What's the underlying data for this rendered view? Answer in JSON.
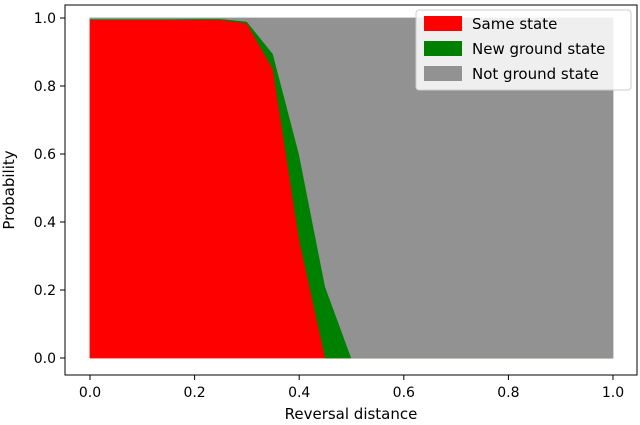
{
  "chart_data": {
    "type": "area",
    "stacked": true,
    "xlabel": "Reversal distance",
    "ylabel": "Probability",
    "xlim": [
      0.0,
      1.0
    ],
    "ylim": [
      0.0,
      1.0
    ],
    "grid": false,
    "legend_position": "top-right",
    "x": [
      0.0,
      0.05,
      0.1,
      0.15,
      0.2,
      0.25,
      0.3,
      0.35,
      0.4,
      0.45,
      0.5,
      0.55,
      0.6,
      0.65,
      0.7,
      0.75,
      0.8,
      0.85,
      0.9,
      0.95,
      1.0
    ],
    "series": [
      {
        "name": "Same state",
        "color": "#ff0000",
        "values": [
          0.995,
          0.995,
          0.995,
          0.995,
          0.995,
          0.995,
          0.985,
          0.85,
          0.35,
          0.0,
          0.0,
          0.0,
          0.0,
          0.0,
          0.0,
          0.0,
          0.0,
          0.0,
          0.0,
          0.0,
          0.0
        ]
      },
      {
        "name": "New ground state",
        "color": "#008000",
        "values": [
          0.002,
          0.002,
          0.002,
          0.002,
          0.003,
          0.003,
          0.005,
          0.045,
          0.25,
          0.21,
          0.0,
          0.0,
          0.0,
          0.0,
          0.0,
          0.0,
          0.0,
          0.0,
          0.0,
          0.0,
          0.0
        ]
      },
      {
        "name": "Not ground state",
        "color": "#929292",
        "values": [
          0.003,
          0.003,
          0.003,
          0.003,
          0.002,
          0.002,
          0.01,
          0.105,
          0.4,
          0.79,
          1.0,
          1.0,
          1.0,
          1.0,
          1.0,
          1.0,
          1.0,
          1.0,
          1.0,
          1.0,
          1.0
        ]
      }
    ],
    "xticks": [
      "0.0",
      "0.2",
      "0.4",
      "0.6",
      "0.8",
      "1.0"
    ],
    "yticks": [
      "0.0",
      "0.2",
      "0.4",
      "0.6",
      "0.8",
      "1.0"
    ]
  }
}
